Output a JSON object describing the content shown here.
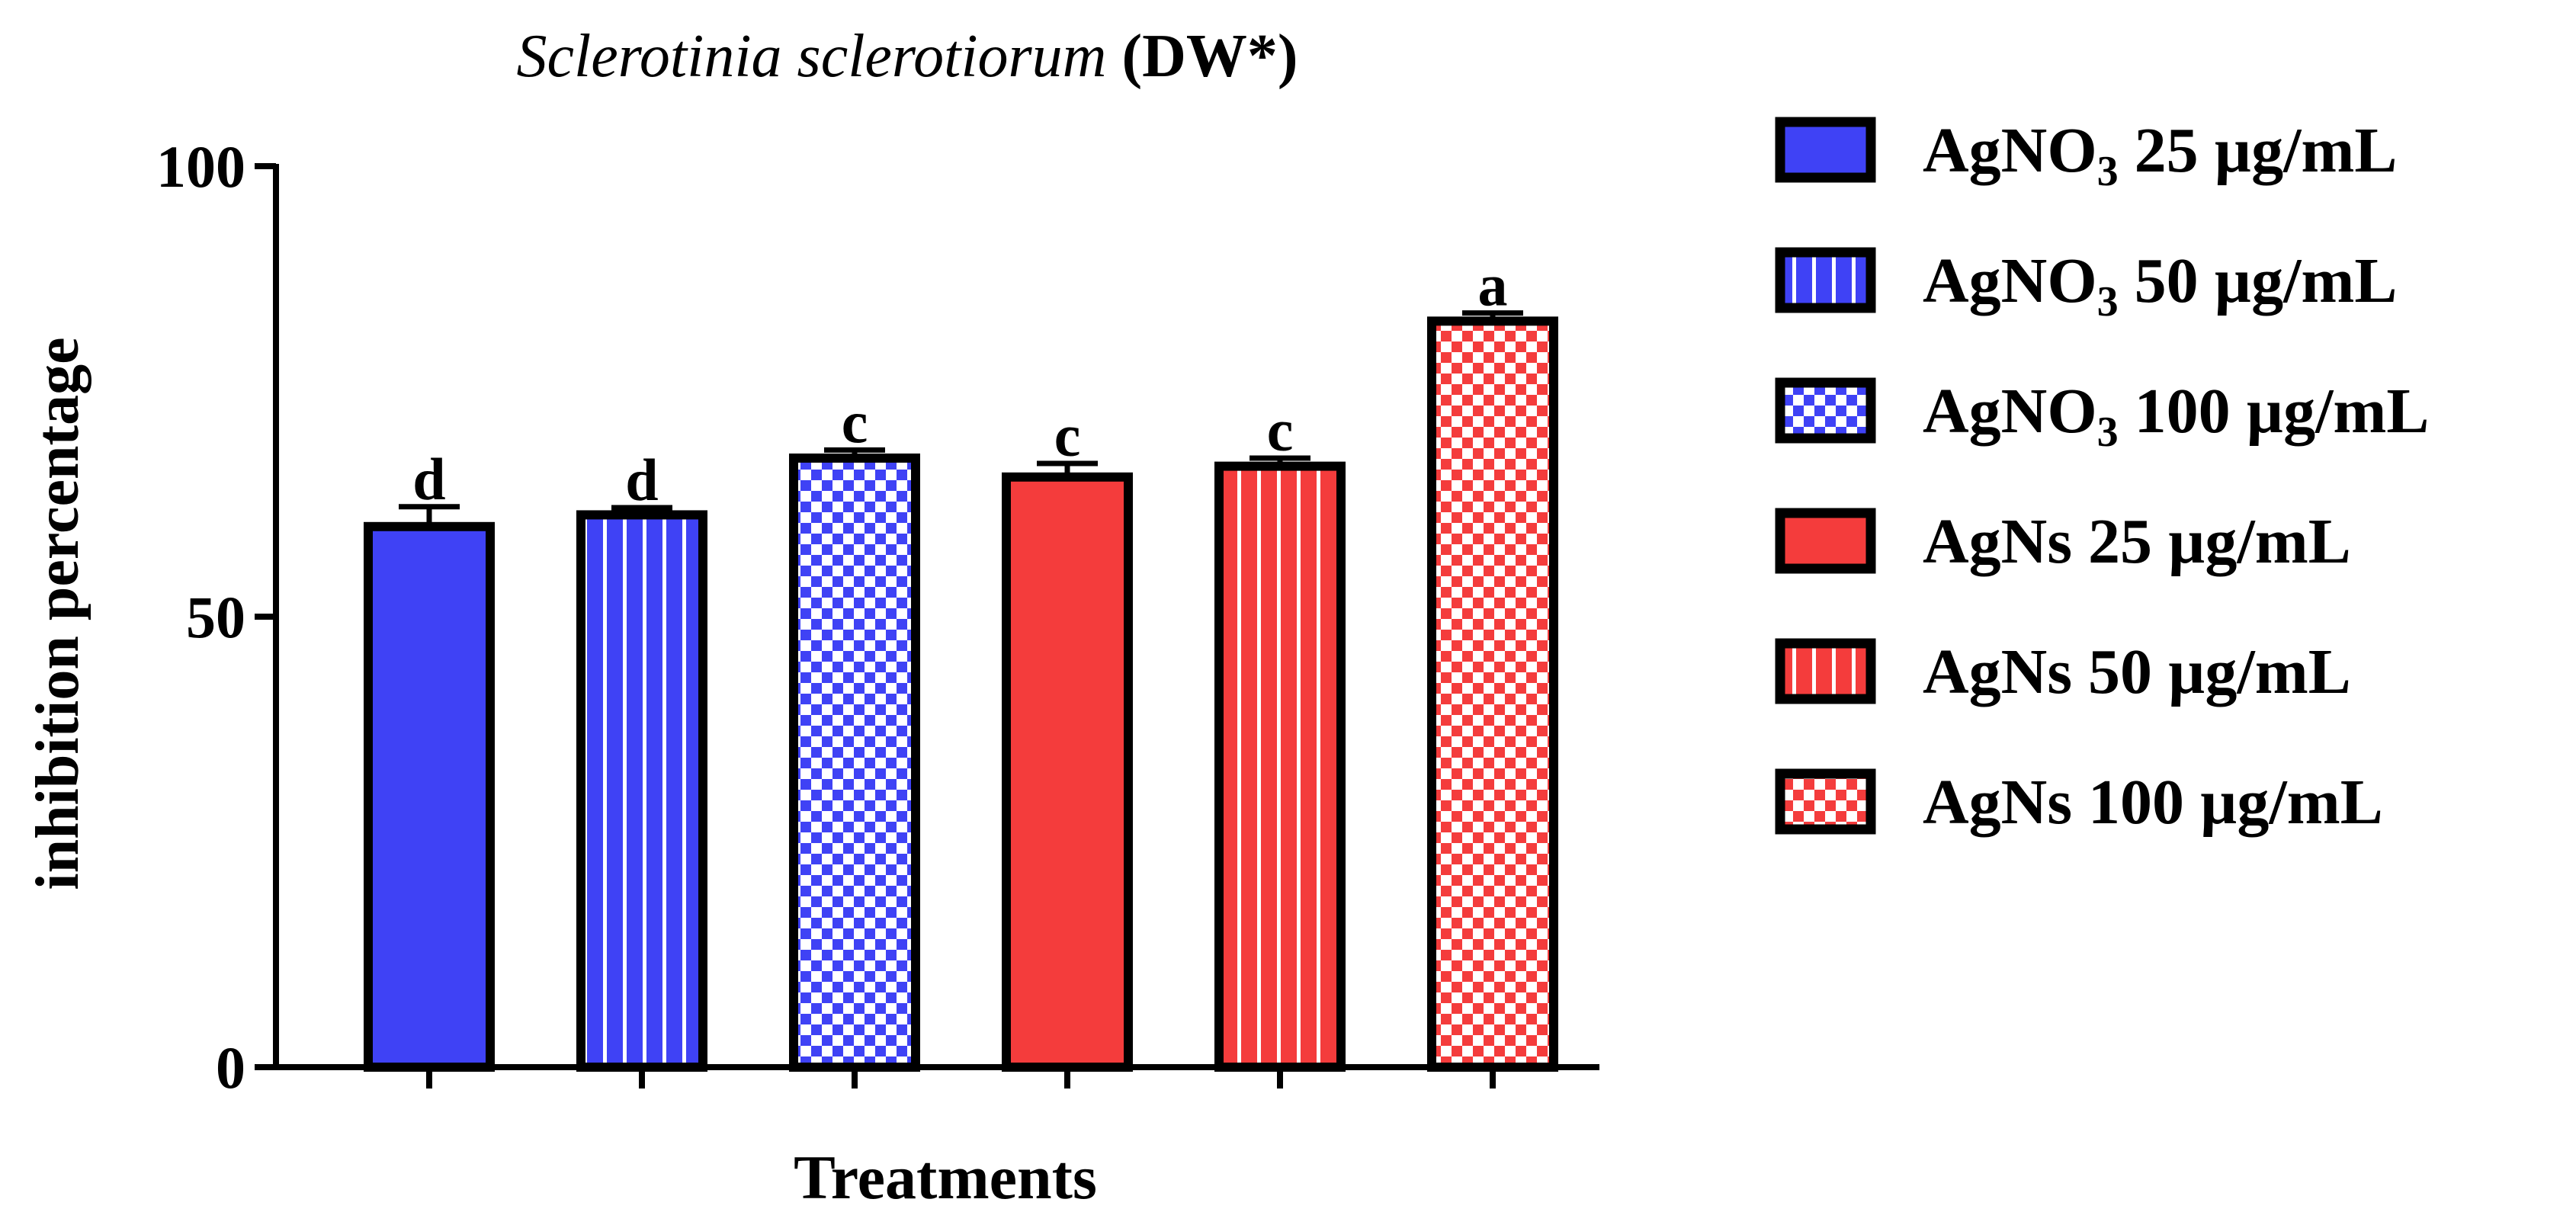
{
  "chart_data": {
    "type": "bar",
    "title": {
      "italic": "Sclerotinia sclerotiorum",
      "rest": " (DW*)"
    },
    "xlabel": "Treatments",
    "ylabel": "inhibition percentage",
    "ylim": [
      0,
      100
    ],
    "yticks": [
      0,
      50,
      100
    ],
    "grid": false,
    "legend_position": "right",
    "categories": [
      {
        "name": "AgNO₃ 25 µg/mL",
        "legend_parts": [
          "AgNO",
          "3",
          " 25 µg/mL"
        ],
        "value": 60,
        "error": 2.2,
        "letter": "d",
        "fill": "#3f42f5",
        "pattern": "solid"
      },
      {
        "name": "AgNO₃ 50 µg/mL",
        "legend_parts": [
          "AgNO",
          "3",
          " 50 µg/mL"
        ],
        "value": 61.3,
        "error": 0.8,
        "letter": "d",
        "fill": "#3f42f5",
        "pattern": "vstripe"
      },
      {
        "name": "AgNO₃ 100 µg/mL",
        "legend_parts": [
          "AgNO",
          "3",
          " 100 µg/mL"
        ],
        "value": 67.6,
        "error": 0.9,
        "letter": "c",
        "fill": "#3f42f5",
        "pattern": "checker"
      },
      {
        "name": "AgNs 25 µg/mL",
        "legend_parts": [
          "AgNs 25 µg/mL",
          "",
          ""
        ],
        "value": 65.5,
        "error": 1.5,
        "letter": "c",
        "fill": "#f43c3c",
        "pattern": "solid"
      },
      {
        "name": "AgNs 50 µg/mL",
        "legend_parts": [
          "AgNs 50 µg/mL",
          "",
          ""
        ],
        "value": 66.7,
        "error": 0.9,
        "letter": "c",
        "fill": "#f43c3c",
        "pattern": "vstripe"
      },
      {
        "name": "AgNs 100 µg/mL",
        "legend_parts": [
          "AgNs 100 µg/mL",
          "",
          ""
        ],
        "value": 82.8,
        "error": 0.9,
        "letter": "a",
        "fill": "#f43c3c",
        "pattern": "checker"
      }
    ]
  }
}
